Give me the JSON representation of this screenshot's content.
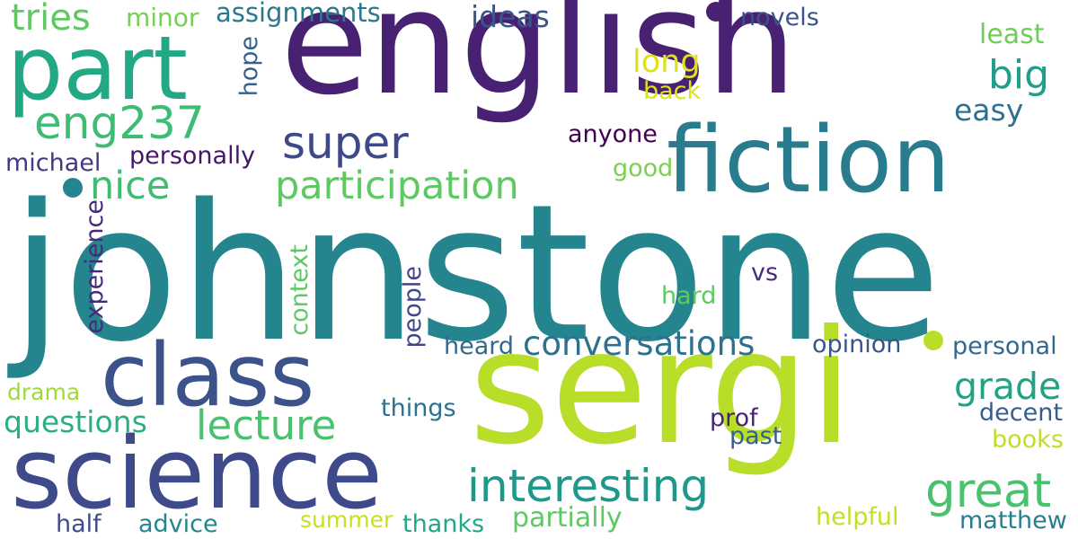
{
  "words": {
    "johnstone": {
      "text": "johnstone",
      "color": "#25858e"
    },
    "english": {
      "text": "english",
      "color": "#482173"
    },
    "sergi": {
      "text": "sergi",
      "color": "#b8de29"
    },
    "fiction": {
      "text": "fiction",
      "color": "#287c8e"
    },
    "science": {
      "text": "science",
      "color": "#3e4a89"
    },
    "class": {
      "text": "class",
      "color": "#3b528b"
    },
    "part": {
      "text": "part",
      "color": "#22a884"
    },
    "eng237": {
      "text": "eng237",
      "color": "#3dbc74"
    },
    "super": {
      "text": "super",
      "color": "#3e4989"
    },
    "participation": {
      "text": "participation",
      "color": "#5ec962"
    },
    "interesting": {
      "text": "interesting",
      "color": "#1f988b"
    },
    "conversations": {
      "text": "conversations",
      "color": "#2c728e"
    },
    "great": {
      "text": "great",
      "color": "#4ac16d"
    },
    "lecture": {
      "text": "lecture",
      "color": "#4ac16d"
    },
    "grade": {
      "text": "grade",
      "color": "#20a386"
    },
    "big": {
      "text": "big",
      "color": "#1f9e89"
    },
    "nice": {
      "text": "nice",
      "color": "#3dbc74"
    },
    "tries": {
      "text": "tries",
      "color": "#5ec962"
    },
    "ideas": {
      "text": "ideas",
      "color": "#39568c"
    },
    "long": {
      "text": "long",
      "color": "#dde318"
    },
    "back": {
      "text": "back",
      "color": "#dde318"
    },
    "questions": {
      "text": "questions",
      "color": "#2ab07f"
    },
    "assignments": {
      "text": "assignments",
      "color": "#2a788e"
    },
    "minor": {
      "text": "minor",
      "color": "#75d054"
    },
    "least": {
      "text": "least",
      "color": "#6ece58"
    },
    "novels": {
      "text": "novels",
      "color": "#3b528b"
    },
    "easy": {
      "text": "easy",
      "color": "#2d718e"
    },
    "hope": {
      "text": "hope",
      "color": "#35608d"
    },
    "anyone": {
      "text": "anyone",
      "color": "#440154"
    },
    "personally": {
      "text": "personally",
      "color": "#481668"
    },
    "michael": {
      "text": "michael",
      "color": "#453882"
    },
    "good": {
      "text": "good",
      "color": "#7ad151"
    },
    "experience": {
      "text": "experience",
      "color": "#482878"
    },
    "context": {
      "text": "context",
      "color": "#5ec962"
    },
    "people": {
      "text": "people",
      "color": "#404688"
    },
    "vs": {
      "text": "vs",
      "color": "#472d7b"
    },
    "hard": {
      "text": "hard",
      "color": "#5ec962"
    },
    "heard": {
      "text": "heard",
      "color": "#31688e"
    },
    "opinion": {
      "text": "opinion",
      "color": "#39568c"
    },
    "personal": {
      "text": "personal",
      "color": "#31688e"
    },
    "drama": {
      "text": "drama",
      "color": "#a0da39"
    },
    "things": {
      "text": "things",
      "color": "#2c728e"
    },
    "prof": {
      "text": "prof",
      "color": "#482475"
    },
    "decent": {
      "text": "decent",
      "color": "#365d8d"
    },
    "past": {
      "text": "past",
      "color": "#355f8d"
    },
    "books": {
      "text": "books",
      "color": "#bddf26"
    },
    "half": {
      "text": "half",
      "color": "#3e4c8a"
    },
    "advice": {
      "text": "advice",
      "color": "#24868e"
    },
    "summer": {
      "text": "summer",
      "color": "#c8e020"
    },
    "thanks": {
      "text": "thanks",
      "color": "#22a884"
    },
    "partially": {
      "text": "partially",
      "color": "#5ec962"
    },
    "helpful": {
      "text": "helpful",
      "color": "#c2df23"
    },
    "matthew": {
      "text": "matthew",
      "color": "#277f8e"
    }
  },
  "dots": {
    "dot1": {
      "color": "#25858e"
    },
    "dot2": {
      "color": "#482173"
    },
    "dot3": {
      "color": "#b8de29"
    }
  }
}
